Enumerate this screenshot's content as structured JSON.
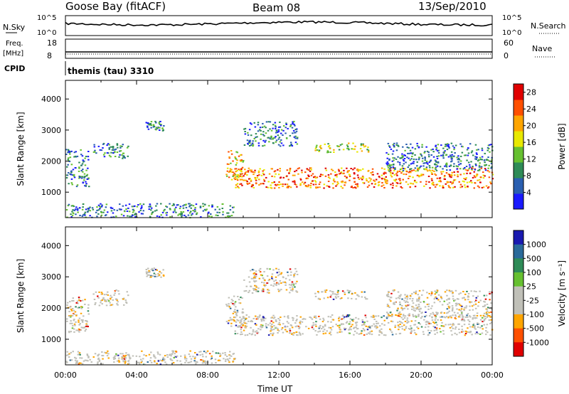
{
  "header": {
    "station": "Goose Bay (fitACF)",
    "beam": "Beam 08",
    "date": "13/Sep/2010"
  },
  "top_strip": {
    "nsky_label": "N.Sky",
    "nsky_ticks": [
      "10^5",
      "10^0"
    ],
    "nsearch_label": "N.Search",
    "nsearch_ticks": [
      "10^5",
      "10^0"
    ],
    "freq_label": "Freq.",
    "freq_unit": "[MHz]",
    "freq_ticks": [
      "18",
      "8"
    ],
    "nave_label": "Nave",
    "nave_ticks": [
      "60",
      "0"
    ],
    "cpid_label": "CPID",
    "cpid_value": "themis (tau) 3310"
  },
  "chart_data": [
    {
      "type": "heatmap",
      "name": "power-panel",
      "xlabel": "Time UT",
      "ylabel": "Slant Range [km]",
      "x_ticks": [
        "00:00",
        "04:00",
        "08:00",
        "12:00",
        "16:00",
        "20:00",
        "00:00"
      ],
      "xlim_hours": [
        0,
        24
      ],
      "y_ticks": [
        "1000",
        "2000",
        "3000",
        "4000"
      ],
      "ylim_km": [
        180,
        4600
      ],
      "colorbar": {
        "title": "Power [dB]",
        "tick_labels": [
          "4",
          "8",
          "12",
          "16",
          "20",
          "24",
          "28"
        ],
        "range": [
          0,
          30
        ],
        "colors": [
          "#1a1aff",
          "#2a5fb0",
          "#2e8b57",
          "#66c030",
          "#e8e800",
          "#ffa500",
          "#ff5000",
          "#e00000"
        ]
      },
      "regions": [
        {
          "t": [
            0.0,
            1.3
          ],
          "r": [
            1200,
            2400
          ],
          "level": 11
        },
        {
          "t": [
            1.5,
            3.5
          ],
          "r": [
            2100,
            2600
          ],
          "level": 8
        },
        {
          "t": [
            4.5,
            5.5
          ],
          "r": [
            3000,
            3300
          ],
          "level": 8
        },
        {
          "t": [
            0.0,
            9.5
          ],
          "r": [
            200,
            650
          ],
          "level": 9
        },
        {
          "t": [
            9.0,
            10.0
          ],
          "r": [
            1400,
            2400
          ],
          "level": 20
        },
        {
          "t": [
            9.5,
            24.0
          ],
          "r": [
            1150,
            1800
          ],
          "level": 26
        },
        {
          "t": [
            10.0,
            13.0
          ],
          "r": [
            2500,
            3300
          ],
          "level": 10
        },
        {
          "t": [
            14.0,
            17.0
          ],
          "r": [
            2300,
            2600
          ],
          "level": 15
        },
        {
          "t": [
            18.0,
            24.0
          ],
          "r": [
            1700,
            2600
          ],
          "level": 10
        }
      ]
    },
    {
      "type": "heatmap",
      "name": "velocity-panel",
      "xlabel": "Time UT",
      "ylabel": "Slant Range [km]",
      "x_ticks": [
        "00:00",
        "04:00",
        "08:00",
        "12:00",
        "16:00",
        "20:00",
        "00:00"
      ],
      "xlim_hours": [
        0,
        24
      ],
      "y_ticks": [
        "1000",
        "2000",
        "3000",
        "4000"
      ],
      "ylim_km": [
        180,
        4600
      ],
      "colorbar": {
        "title": "Velocity [m s⁻¹]",
        "tick_labels": [
          "1000",
          "500",
          "100",
          "25",
          "-25",
          "-100",
          "-500",
          "-1000"
        ],
        "colors": [
          "#1a1ab0",
          "#2a6a9a",
          "#2e8b57",
          "#66c030",
          "#c0c0b8",
          "#c0c0b8",
          "#ffa500",
          "#ff5000",
          "#e00000"
        ]
      },
      "regions": [
        {
          "t": [
            0.0,
            1.3
          ],
          "r": [
            1200,
            2400
          ],
          "level": 4
        },
        {
          "t": [
            1.5,
            3.5
          ],
          "r": [
            2100,
            2600
          ],
          "level": 4
        },
        {
          "t": [
            4.5,
            5.5
          ],
          "r": [
            3000,
            3300
          ],
          "level": 4
        },
        {
          "t": [
            0.0,
            9.5
          ],
          "r": [
            200,
            650
          ],
          "level": 4
        },
        {
          "t": [
            9.0,
            10.0
          ],
          "r": [
            1400,
            2400
          ],
          "level": 4
        },
        {
          "t": [
            9.5,
            24.0
          ],
          "r": [
            1150,
            1800
          ],
          "level": 4
        },
        {
          "t": [
            10.0,
            13.0
          ],
          "r": [
            2500,
            3300
          ],
          "level": 4
        },
        {
          "t": [
            14.0,
            17.0
          ],
          "r": [
            2300,
            2600
          ],
          "level": 4
        },
        {
          "t": [
            18.0,
            24.0
          ],
          "r": [
            1700,
            2600
          ],
          "level": 4
        }
      ]
    }
  ]
}
